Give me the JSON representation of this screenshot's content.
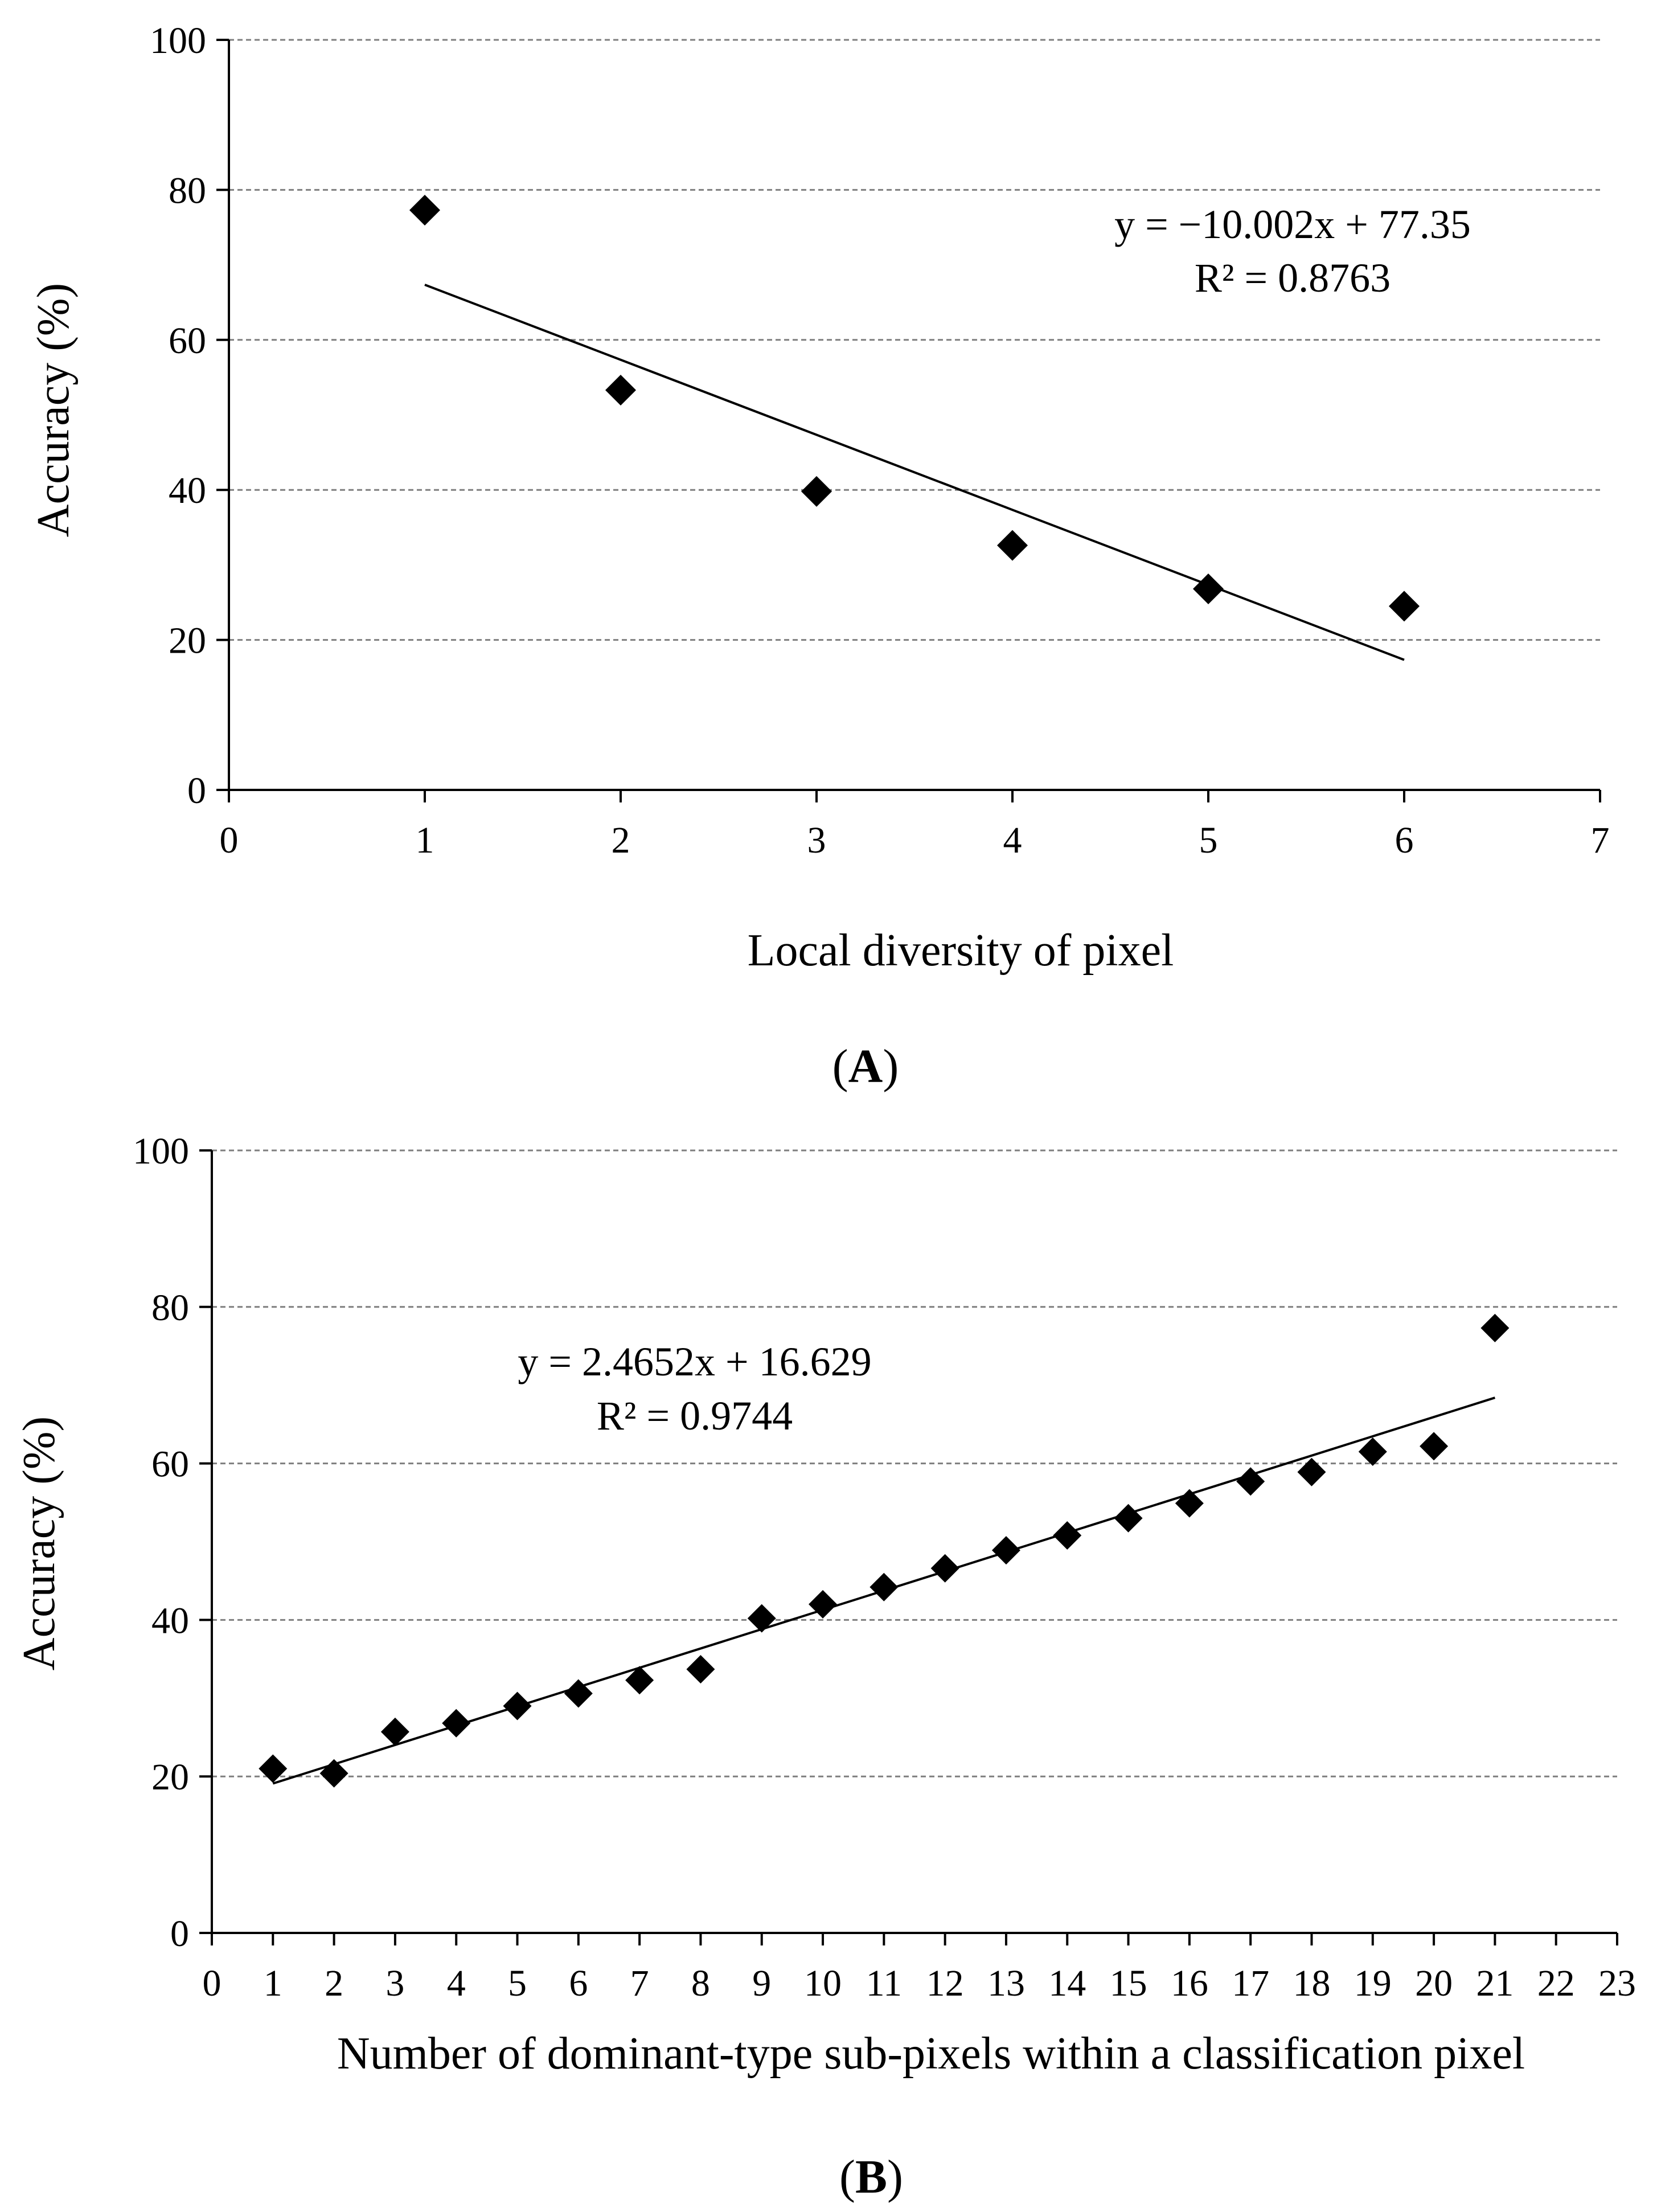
{
  "chart_data": [
    {
      "type": "scatter",
      "panel_label": "A",
      "title": "",
      "xlabel": "Local diversity of pixel",
      "ylabel": "Accuracy (%)",
      "xlim": [
        0,
        7
      ],
      "ylim": [
        0,
        100
      ],
      "xticks": [
        0,
        1,
        2,
        3,
        4,
        5,
        6,
        7
      ],
      "yticks": [
        0,
        20,
        40,
        60,
        80,
        100
      ],
      "grid": "horizontal dashed",
      "series": [
        {
          "name": "Accuracy",
          "marker": "diamond",
          "x": [
            1,
            2,
            3,
            4,
            5,
            6
          ],
          "y": [
            77.3,
            53.3,
            39.8,
            32.6,
            26.8,
            24.5
          ]
        }
      ],
      "trendline": {
        "slope": -10.002,
        "intercept": 77.35,
        "x_range": [
          1,
          6
        ],
        "equation": "y = −10.002x + 77.35",
        "r_squared": "R² = 0.8763"
      }
    },
    {
      "type": "scatter",
      "panel_label": "B",
      "title": "",
      "xlabel": "Number of dominant-type sub-pixels within a classification pixel",
      "ylabel": "Accuracy (%)",
      "xlim": [
        0,
        23
      ],
      "ylim": [
        0,
        100
      ],
      "xticks": [
        0,
        1,
        2,
        3,
        4,
        5,
        6,
        7,
        8,
        9,
        10,
        11,
        12,
        13,
        14,
        15,
        16,
        17,
        18,
        19,
        20,
        21,
        22,
        23
      ],
      "yticks": [
        0,
        20,
        40,
        60,
        80,
        100
      ],
      "grid": "horizontal dashed",
      "series": [
        {
          "name": "Accuracy",
          "marker": "diamond",
          "x": [
            1,
            2,
            3,
            4,
            5,
            6,
            7,
            8,
            9,
            10,
            11,
            12,
            13,
            14,
            15,
            16,
            17,
            18,
            19,
            20,
            21
          ],
          "y": [
            21.0,
            20.4,
            25.7,
            26.8,
            29.0,
            30.6,
            32.3,
            33.7,
            40.2,
            42.0,
            44.2,
            46.6,
            48.9,
            50.8,
            53.0,
            54.9,
            57.7,
            58.9,
            61.5,
            62.2,
            77.3
          ]
        }
      ],
      "trendline": {
        "slope": 2.4652,
        "intercept": 16.629,
        "x_range": [
          1,
          21
        ],
        "equation": "y = 2.4652x + 16.629",
        "r_squared": "R² = 0.9744"
      }
    }
  ]
}
